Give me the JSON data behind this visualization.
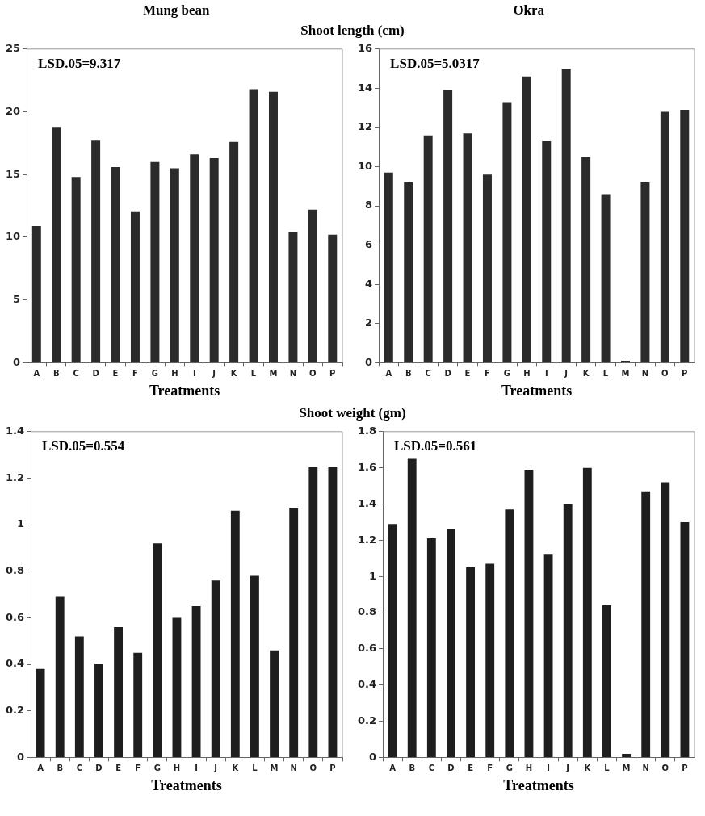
{
  "chart_data": [
    {
      "type": "bar",
      "title": "Mung bean",
      "subtitle": "Shoot length (cm)",
      "xlabel": "Treatments",
      "categories": [
        "A",
        "B",
        "C",
        "D",
        "E",
        "F",
        "G",
        "H",
        "I",
        "J",
        "K",
        "L",
        "M",
        "N",
        "O",
        "P"
      ],
      "values": [
        10.9,
        18.8,
        14.8,
        17.7,
        15.6,
        12.0,
        16.0,
        15.5,
        16.6,
        16.3,
        17.6,
        21.8,
        21.6,
        10.4,
        12.2,
        10.2
      ],
      "color": "#2b2b2b",
      "ylim": [
        0,
        25
      ],
      "yticks": [
        0,
        5,
        10,
        15,
        20,
        25
      ],
      "grid": false,
      "legend": false,
      "annotations": [
        "LSD.05=9.317"
      ]
    },
    {
      "type": "bar",
      "title": "Okra",
      "xlabel": "Treatments",
      "categories": [
        "A",
        "B",
        "C",
        "D",
        "E",
        "F",
        "G",
        "H",
        "I",
        "J",
        "K",
        "L",
        "M",
        "N",
        "O",
        "P"
      ],
      "values": [
        9.7,
        9.2,
        11.6,
        13.9,
        11.7,
        9.6,
        13.3,
        14.6,
        11.3,
        15.0,
        10.5,
        8.6,
        0.1,
        9.2,
        12.8,
        12.9
      ],
      "color": "#2b2b2b",
      "ylim": [
        0,
        16
      ],
      "yticks": [
        0,
        2,
        4,
        6,
        8,
        10,
        12,
        14,
        16
      ],
      "grid": false,
      "legend": false,
      "annotations": [
        "LSD.05=5.0317"
      ]
    },
    {
      "type": "bar",
      "subtitle": "Shoot weight (gm)",
      "xlabel": "Treatments",
      "categories": [
        "A",
        "B",
        "C",
        "D",
        "E",
        "F",
        "G",
        "H",
        "I",
        "J",
        "K",
        "L",
        "M",
        "N",
        "O",
        "P"
      ],
      "values": [
        0.38,
        0.69,
        0.52,
        0.4,
        0.56,
        0.45,
        0.92,
        0.6,
        0.65,
        0.76,
        1.06,
        0.78,
        0.46,
        1.07,
        1.25,
        1.25
      ],
      "color": "#1e1e1e",
      "ylim": [
        0,
        1.4
      ],
      "yticks": [
        0,
        0.2,
        0.4,
        0.6,
        0.8,
        1,
        1.2,
        1.4
      ],
      "grid": false,
      "legend": false,
      "annotations": [
        "LSD.05=0.554"
      ]
    },
    {
      "type": "bar",
      "xlabel": "Treatments",
      "categories": [
        "A",
        "B",
        "C",
        "D",
        "E",
        "F",
        "G",
        "H",
        "I",
        "J",
        "K",
        "L",
        "M",
        "N",
        "O",
        "P"
      ],
      "values": [
        1.29,
        1.65,
        1.21,
        1.26,
        1.05,
        1.07,
        1.37,
        1.59,
        1.12,
        1.4,
        1.6,
        0.84,
        0.02,
        1.47,
        1.52,
        1.3
      ],
      "color": "#1e1e1e",
      "ylim": [
        0,
        1.8
      ],
      "yticks": [
        0,
        0.2,
        0.4,
        0.6,
        0.8,
        1,
        1.2,
        1.4,
        1.6,
        1.8
      ],
      "grid": false,
      "legend": false,
      "annotations": [
        "LSD.05=0.561"
      ]
    }
  ]
}
